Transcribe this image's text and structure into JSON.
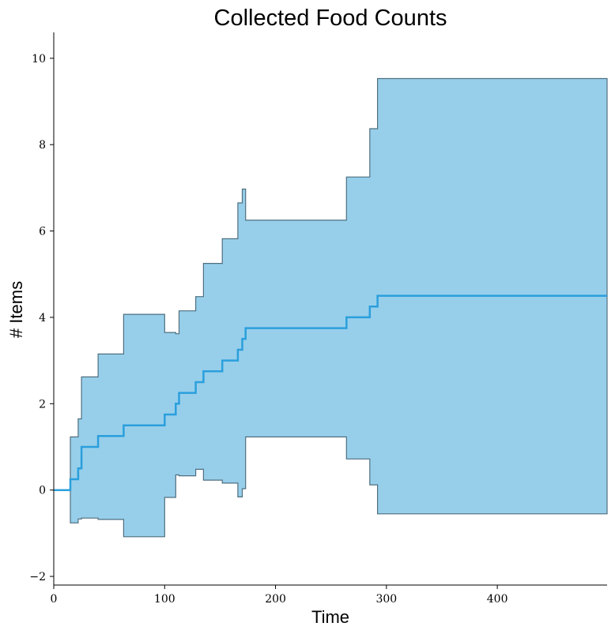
{
  "chart_data": {
    "type": "line",
    "title": "Collected Food Counts",
    "xlabel": "Time",
    "ylabel": "# Items",
    "xlim": [
      0,
      499
    ],
    "ylim": [
      -2.2,
      10.6
    ],
    "xticks": [
      0,
      100,
      200,
      300,
      400
    ],
    "yticks": [
      -2,
      0,
      2,
      4,
      6,
      8,
      10
    ],
    "grid": false,
    "colors": {
      "mean_line": "#2b9fdc",
      "band_fill": "#97cfeb",
      "band_edge": "#4f6f7f"
    },
    "series": [
      {
        "kind": "mean",
        "points": [
          [
            0,
            0
          ],
          [
            15,
            0
          ],
          [
            15,
            0.25
          ],
          [
            22,
            0.25
          ],
          [
            22,
            0.5
          ],
          [
            25,
            0.5
          ],
          [
            25,
            1.0
          ],
          [
            40,
            1.0
          ],
          [
            40,
            1.25
          ],
          [
            63,
            1.25
          ],
          [
            63,
            1.5
          ],
          [
            100,
            1.5
          ],
          [
            100,
            1.75
          ],
          [
            110,
            1.75
          ],
          [
            110,
            2.0
          ],
          [
            113,
            2.0
          ],
          [
            113,
            2.25
          ],
          [
            128,
            2.25
          ],
          [
            128,
            2.5
          ],
          [
            135,
            2.5
          ],
          [
            135,
            2.75
          ],
          [
            152,
            2.75
          ],
          [
            152,
            3.0
          ],
          [
            166,
            3.0
          ],
          [
            166,
            3.25
          ],
          [
            170,
            3.25
          ],
          [
            170,
            3.5
          ],
          [
            173,
            3.5
          ],
          [
            173,
            3.75
          ],
          [
            264,
            3.75
          ],
          [
            264,
            4.0
          ],
          [
            285,
            4.0
          ],
          [
            285,
            4.25
          ],
          [
            292,
            4.25
          ],
          [
            292,
            4.5
          ],
          [
            499,
            4.5
          ]
        ]
      },
      {
        "kind": "upper_bound",
        "points": [
          [
            0,
            0
          ],
          [
            15,
            0
          ],
          [
            15,
            1.23
          ],
          [
            22,
            1.23
          ],
          [
            22,
            1.65
          ],
          [
            25,
            1.65
          ],
          [
            25,
            2.62
          ],
          [
            40,
            2.62
          ],
          [
            40,
            3.15
          ],
          [
            63,
            3.15
          ],
          [
            63,
            4.07
          ],
          [
            100,
            4.07
          ],
          [
            100,
            3.65
          ],
          [
            110,
            3.65
          ],
          [
            110,
            3.62
          ],
          [
            113,
            3.62
          ],
          [
            113,
            4.15
          ],
          [
            128,
            4.15
          ],
          [
            128,
            4.48
          ],
          [
            135,
            4.48
          ],
          [
            135,
            5.25
          ],
          [
            152,
            5.25
          ],
          [
            152,
            5.82
          ],
          [
            166,
            5.82
          ],
          [
            166,
            6.65
          ],
          [
            170,
            6.65
          ],
          [
            170,
            6.97
          ],
          [
            173,
            6.97
          ],
          [
            173,
            6.25
          ],
          [
            264,
            6.25
          ],
          [
            264,
            7.25
          ],
          [
            285,
            7.25
          ],
          [
            285,
            8.37
          ],
          [
            292,
            8.37
          ],
          [
            292,
            9.53
          ],
          [
            499,
            9.53
          ]
        ]
      },
      {
        "kind": "lower_bound",
        "points": [
          [
            0,
            0
          ],
          [
            15,
            0
          ],
          [
            15,
            -0.76
          ],
          [
            22,
            -0.76
          ],
          [
            22,
            -0.67
          ],
          [
            25,
            -0.67
          ],
          [
            25,
            -0.65
          ],
          [
            40,
            -0.65
          ],
          [
            40,
            -0.68
          ],
          [
            63,
            -0.68
          ],
          [
            63,
            -1.08
          ],
          [
            100,
            -1.08
          ],
          [
            100,
            -0.17
          ],
          [
            110,
            -0.17
          ],
          [
            110,
            0.35
          ],
          [
            113,
            0.35
          ],
          [
            113,
            0.33
          ],
          [
            128,
            0.33
          ],
          [
            128,
            0.48
          ],
          [
            135,
            0.48
          ],
          [
            135,
            0.23
          ],
          [
            152,
            0.23
          ],
          [
            152,
            0.16
          ],
          [
            166,
            0.16
          ],
          [
            166,
            -0.16
          ],
          [
            170,
            -0.16
          ],
          [
            170,
            0.03
          ],
          [
            173,
            0.03
          ],
          [
            173,
            1.23
          ],
          [
            264,
            1.23
          ],
          [
            264,
            0.72
          ],
          [
            285,
            0.72
          ],
          [
            285,
            0.12
          ],
          [
            292,
            0.12
          ],
          [
            292,
            -0.55
          ],
          [
            499,
            -0.55
          ]
        ]
      }
    ]
  }
}
